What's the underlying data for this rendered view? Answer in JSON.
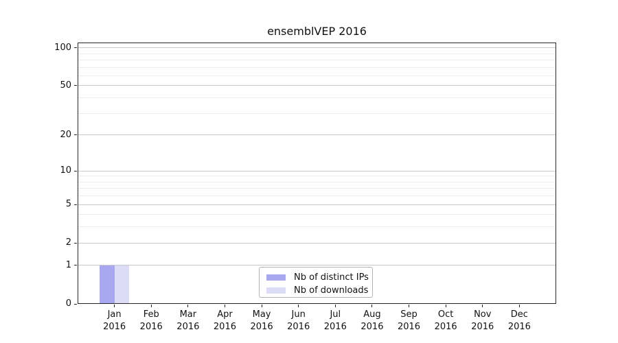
{
  "chart_data": {
    "type": "bar",
    "title": "ensemblVEP 2016",
    "categories": [
      "Jan",
      "Feb",
      "Mar",
      "Apr",
      "May",
      "Jun",
      "Jul",
      "Aug",
      "Sep",
      "Oct",
      "Nov",
      "Dec"
    ],
    "year_label": "2016",
    "series": [
      {
        "name": "Nb of distinct IPs",
        "color": "#a8a8f0",
        "values": [
          1,
          0,
          0,
          0,
          0,
          0,
          0,
          0,
          0,
          0,
          0,
          0
        ]
      },
      {
        "name": "Nb of downloads",
        "color": "#dcdcf7",
        "values": [
          1,
          0,
          0,
          0,
          0,
          0,
          0,
          0,
          0,
          0,
          0,
          0
        ]
      }
    ],
    "yticks": [
      0,
      1,
      2,
      5,
      10,
      20,
      50,
      100
    ],
    "minor_gridlines": [
      3,
      4,
      6,
      7,
      8,
      9,
      30,
      40,
      60,
      70,
      80,
      90
    ],
    "ylim": [
      0,
      110
    ],
    "yscale": "log1p",
    "xlabel": "",
    "ylabel": "",
    "grid": true,
    "legend_position": "lower center",
    "colors": {
      "major_grid": "#c8c8c8",
      "minor_grid": "#ececec",
      "axis": "#262626",
      "text": "#111111",
      "background": "#ffffff"
    }
  }
}
